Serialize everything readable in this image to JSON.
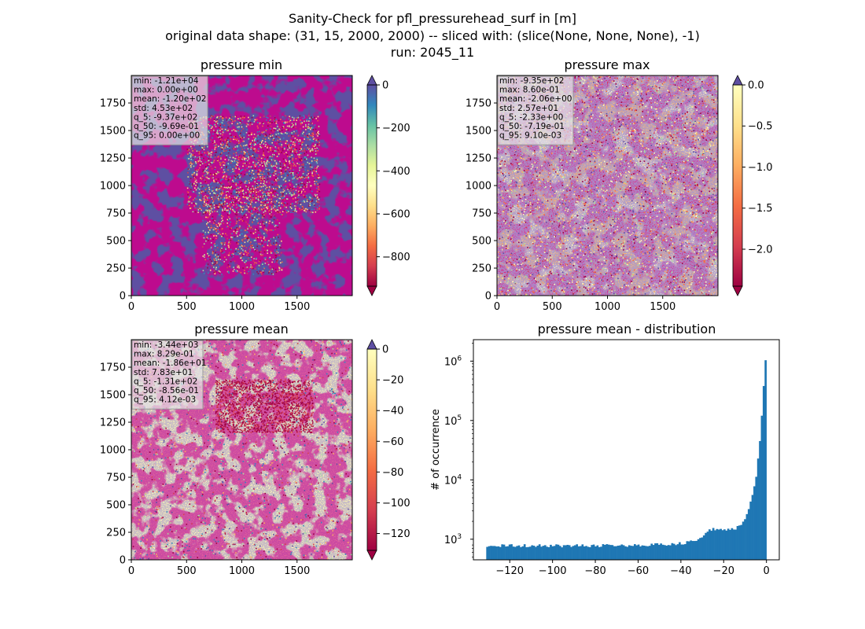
{
  "figure": {
    "title_lines": [
      "Sanity-Check for pfl_pressurehead_surf in [m]",
      "original data shape: (31, 15, 2000, 2000) -- sliced with: (slice(None, None, None), -1)",
      "run: 2045_11"
    ]
  },
  "chart_data": [
    {
      "type": "heatmap",
      "title": "pressure min",
      "xlim": [
        0,
        2000
      ],
      "ylim": [
        0,
        2000
      ],
      "xticks": [
        0,
        500,
        1000,
        1500
      ],
      "yticks": [
        0,
        250,
        500,
        750,
        1000,
        1250,
        1500,
        1750
      ],
      "colormap": "Spectral",
      "colorbar": {
        "range": [
          -937,
          0
        ],
        "ticks": [
          0,
          -200,
          -400,
          -600,
          -800
        ],
        "extend": "both"
      },
      "stats_lines": [
        "min: -1.21e+04",
        "max: 0.00e+00",
        "mean: -1.20e+02",
        "std: 4.53e+02",
        "q_5: -9.37e+02",
        "q_50: -9.69e-01",
        "q_95: 0.00e+00"
      ]
    },
    {
      "type": "heatmap",
      "title": "pressure max",
      "xlim": [
        0,
        2000
      ],
      "ylim": [
        0,
        2000
      ],
      "xticks": [
        0,
        500,
        1000,
        1500
      ],
      "yticks": [
        0,
        250,
        500,
        750,
        1000,
        1250,
        1500,
        1750
      ],
      "colormap": "Spectral",
      "colorbar": {
        "range": [
          -2.45,
          0.0
        ],
        "ticks": [
          0.0,
          -0.5,
          -1.0,
          -1.5,
          -2.0
        ],
        "tick_labels": [
          "0.0",
          "−0.5",
          "−1.0",
          "−1.5",
          "−2.0"
        ],
        "extend": "both"
      },
      "stats_lines": [
        "min: -9.35e+02",
        "max: 8.60e-01",
        "mean: -2.06e+00",
        "std: 2.57e+01",
        "q_5: -2.33e+00",
        "q_50: -7.19e-01",
        "q_95: 9.10e-03"
      ]
    },
    {
      "type": "heatmap",
      "title": "pressure mean",
      "xlim": [
        0,
        2000
      ],
      "ylim": [
        0,
        2000
      ],
      "xticks": [
        0,
        500,
        1000,
        1500
      ],
      "yticks": [
        0,
        250,
        500,
        750,
        1000,
        1250,
        1500,
        1750
      ],
      "colormap": "Spectral",
      "colorbar": {
        "range": [
          -131,
          0
        ],
        "ticks": [
          0,
          -20,
          -40,
          -60,
          -80,
          -100,
          -120
        ],
        "extend": "both"
      },
      "stats_lines": [
        "min: -3.44e+03",
        "max: 8.29e-01",
        "mean: -1.86e+01",
        "std: 7.83e+01",
        "q_5: -1.31e+02",
        "q_50: -8.56e-01",
        "q_95: 4.12e-03"
      ]
    },
    {
      "type": "bar",
      "title": "pressure mean - distribution",
      "ylabel": "# of occurrence",
      "xlim": [
        -137,
        6
      ],
      "ylim_log": [
        450,
        2300000
      ],
      "yscale": "log",
      "xticks": [
        -120,
        -100,
        -80,
        -60,
        -40,
        -20,
        0
      ],
      "yticks": [
        {
          "value": 1000,
          "base": "10",
          "exp": "3"
        },
        {
          "value": 10000,
          "base": "10",
          "exp": "4"
        },
        {
          "value": 100000,
          "base": "10",
          "exp": "5"
        },
        {
          "value": 1000000,
          "base": "10",
          "exp": "6"
        }
      ],
      "bar_color": "#1f77b4",
      "bins": {
        "start": -131,
        "end": 0,
        "count": 150
      },
      "anchors": [
        [
          -131,
          790
        ],
        [
          -120,
          780
        ],
        [
          -100,
          775
        ],
        [
          -80,
          780
        ],
        [
          -60,
          790
        ],
        [
          -50,
          810
        ],
        [
          -40,
          850
        ],
        [
          -32,
          950
        ],
        [
          -28,
          1300
        ],
        [
          -25,
          1500
        ],
        [
          -20,
          1450
        ],
        [
          -15,
          1500
        ],
        [
          -12,
          1700
        ],
        [
          -10,
          2200
        ],
        [
          -8,
          3500
        ],
        [
          -6,
          6500
        ],
        [
          -5,
          10000
        ],
        [
          -4,
          22000
        ],
        [
          -3,
          50000
        ],
        [
          -2,
          150000
        ],
        [
          -1,
          600000
        ],
        [
          0,
          1500000
        ]
      ]
    }
  ]
}
